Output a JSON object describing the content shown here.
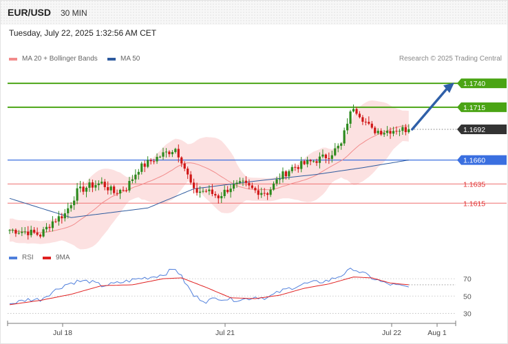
{
  "header": {
    "symbol": "EUR/USD",
    "timeframe": "30 MIN",
    "datetime": "Tuesday, July 22, 2025 1:32:56 AM CET"
  },
  "legend": {
    "ma20": {
      "label": "MA 20 + Bollinger Bands",
      "color": "#f28b8b"
    },
    "ma50": {
      "label": "MA 50",
      "color": "#2d5a9e"
    },
    "credit": "Research © 2025 Trading Central"
  },
  "rsi_legend": {
    "rsi": {
      "label": "RSI",
      "color": "#4f7fdc"
    },
    "ma9": {
      "label": "9MA",
      "color": "#e02020"
    }
  },
  "chart_data": [
    {
      "type": "candlestick",
      "ylim": [
        1.1565,
        1.1758
      ],
      "levels": [
        {
          "value": 1.174,
          "label": "1.1740",
          "kind": "resistance"
        },
        {
          "value": 1.1715,
          "label": "1.1715",
          "kind": "resistance"
        },
        {
          "value": 1.1692,
          "label": "1.1692",
          "kind": "current"
        },
        {
          "value": 1.166,
          "label": "1.1660",
          "kind": "pivot"
        },
        {
          "value": 1.1635,
          "label": "1.1635",
          "kind": "support"
        },
        {
          "value": 1.1615,
          "label": "1.1615",
          "kind": "support"
        }
      ],
      "x_ticks": [
        "Jul 18",
        "Jul 21",
        "Jul 22",
        "Aug 1"
      ],
      "forecast_target": 1.174,
      "anchors": [
        [
          0,
          1.1587
        ],
        [
          6,
          1.1585
        ],
        [
          10,
          1.1582
        ],
        [
          14,
          1.1596
        ],
        [
          18,
          1.1604
        ],
        [
          22,
          1.1627
        ],
        [
          26,
          1.1633
        ],
        [
          30,
          1.1636
        ],
        [
          34,
          1.1626
        ],
        [
          38,
          1.1631
        ],
        [
          42,
          1.1651
        ],
        [
          46,
          1.1659
        ],
        [
          50,
          1.1666
        ],
        [
          54,
          1.1672
        ],
        [
          56,
          1.166
        ],
        [
          60,
          1.1627
        ],
        [
          64,
          1.1628
        ],
        [
          68,
          1.1622
        ],
        [
          72,
          1.1632
        ],
        [
          76,
          1.1635
        ],
        [
          80,
          1.1628
        ],
        [
          84,
          1.1626
        ],
        [
          88,
          1.1642
        ],
        [
          92,
          1.1652
        ],
        [
          96,
          1.1656
        ],
        [
          100,
          1.166
        ],
        [
          104,
          1.1665
        ],
        [
          108,
          1.1676
        ],
        [
          110,
          1.17
        ],
        [
          112,
          1.1716
        ],
        [
          114,
          1.1708
        ],
        [
          118,
          1.1691
        ],
        [
          122,
          1.169
        ],
        [
          126,
          1.1692
        ],
        [
          130,
          1.1692
        ]
      ],
      "ma50": [
        [
          0,
          1.162
        ],
        [
          20,
          1.16
        ],
        [
          45,
          1.161
        ],
        [
          60,
          1.163
        ],
        [
          80,
          1.1638
        ],
        [
          100,
          1.1645
        ],
        [
          115,
          1.1652
        ],
        [
          130,
          1.166
        ]
      ]
    },
    {
      "type": "line",
      "title": "RSI",
      "ylim": [
        20,
        90
      ],
      "y_ticks": [
        70,
        50,
        30
      ],
      "rsi": [
        [
          0,
          41
        ],
        [
          6,
          46
        ],
        [
          10,
          46
        ],
        [
          14,
          55
        ],
        [
          18,
          63
        ],
        [
          22,
          67
        ],
        [
          26,
          67
        ],
        [
          30,
          62
        ],
        [
          34,
          64
        ],
        [
          38,
          67
        ],
        [
          42,
          70
        ],
        [
          46,
          72
        ],
        [
          50,
          75
        ],
        [
          54,
          82
        ],
        [
          56,
          72
        ],
        [
          60,
          50
        ],
        [
          64,
          44
        ],
        [
          68,
          48
        ],
        [
          72,
          46
        ],
        [
          76,
          46
        ],
        [
          80,
          49
        ],
        [
          84,
          48
        ],
        [
          88,
          55
        ],
        [
          92,
          60
        ],
        [
          96,
          64
        ],
        [
          100,
          66
        ],
        [
          104,
          68
        ],
        [
          108,
          74
        ],
        [
          112,
          82
        ],
        [
          114,
          78
        ],
        [
          118,
          71
        ],
        [
          122,
          65
        ],
        [
          126,
          62
        ],
        [
          130,
          60
        ]
      ],
      "ma9": [
        [
          0,
          40
        ],
        [
          10,
          45
        ],
        [
          20,
          52
        ],
        [
          30,
          62
        ],
        [
          40,
          63
        ],
        [
          50,
          70
        ],
        [
          56,
          71
        ],
        [
          64,
          60
        ],
        [
          72,
          48
        ],
        [
          80,
          47
        ],
        [
          88,
          51
        ],
        [
          96,
          59
        ],
        [
          104,
          64
        ],
        [
          112,
          72
        ],
        [
          118,
          71
        ],
        [
          124,
          65
        ],
        [
          130,
          63
        ]
      ]
    }
  ]
}
